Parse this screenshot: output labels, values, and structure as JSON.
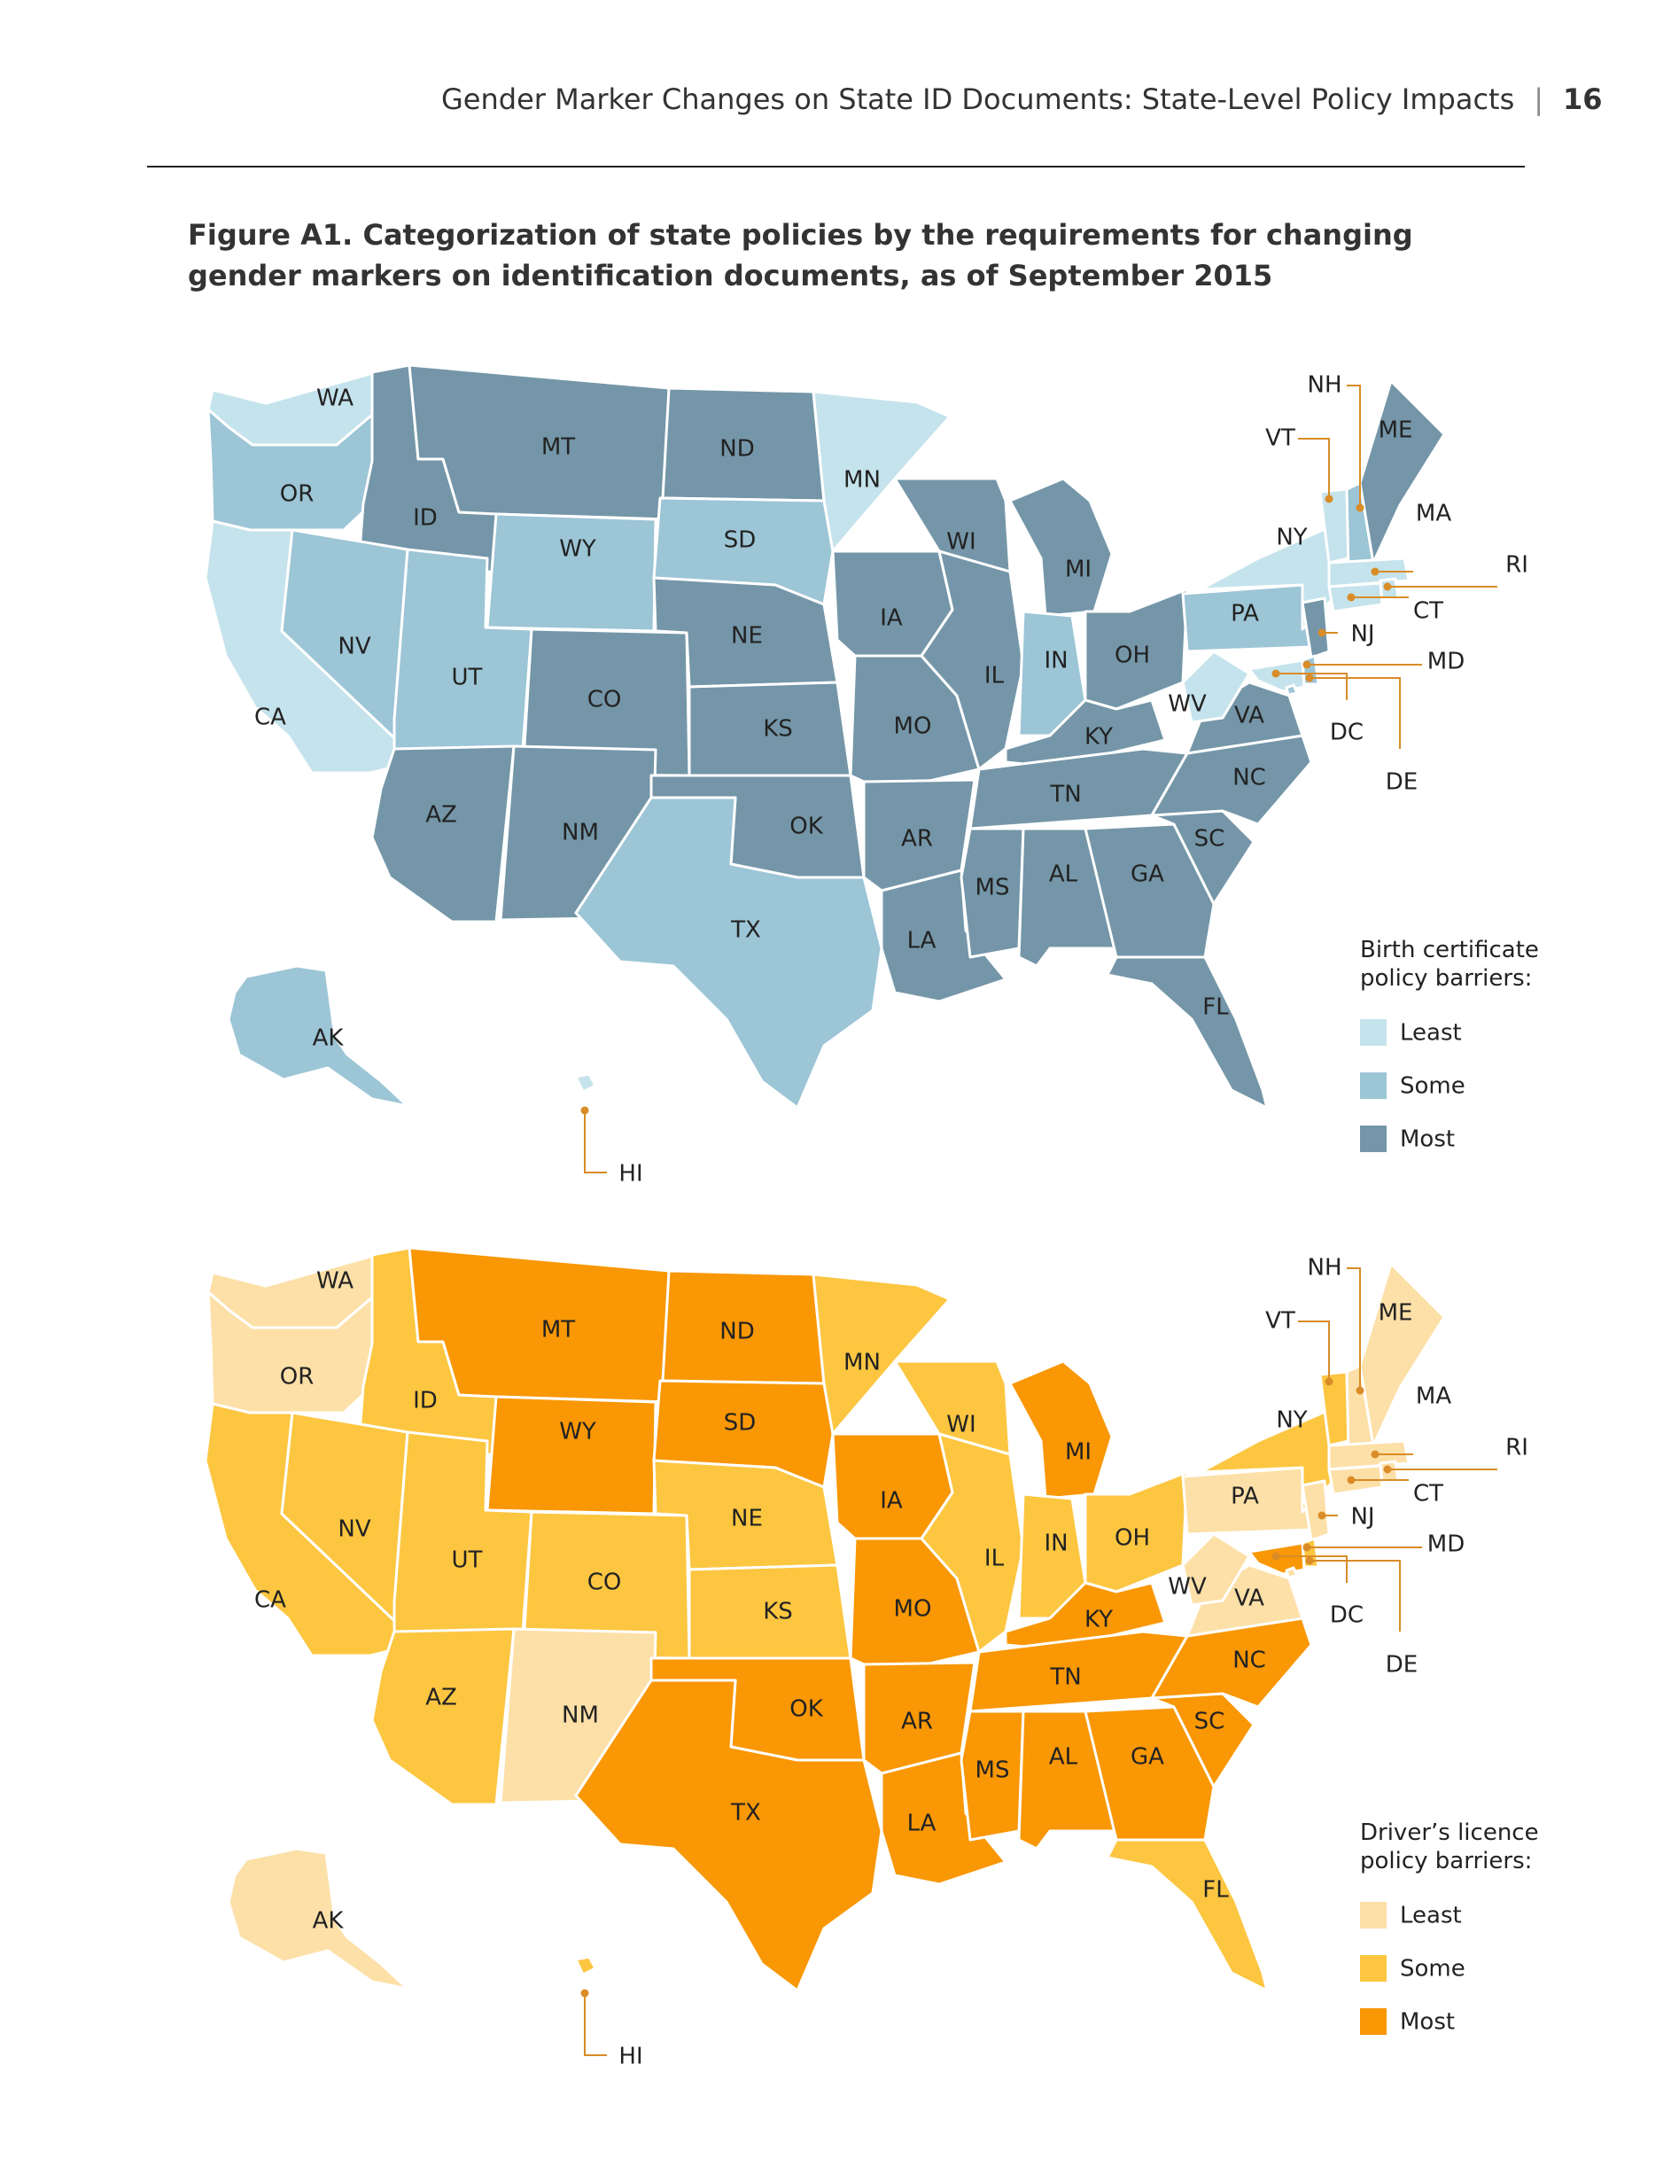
{
  "header": {
    "title": "Gender Marker Changes on State ID Documents: State-Level Policy Impacts",
    "separator": "|",
    "page_number": "16"
  },
  "figure": {
    "title": "Figure A1. Categorization of state policies by the requirements for changing gender markers on identification documents, as of September 2015"
  },
  "maps": [
    {
      "id": "birth",
      "legend_title_lines": [
        "Birth certificate",
        "policy barriers:"
      ],
      "categories": [
        "Least",
        "Some",
        "Most"
      ],
      "colors": {
        "Least": "#c5e3ec",
        "Some": "#9cc5d6",
        "Most": "#7496a8"
      },
      "states": {
        "WA": "Least",
        "OR": "Some",
        "CA": "Least",
        "ID": "Most",
        "NV": "Some",
        "MT": "Most",
        "WY": "Some",
        "UT": "Some",
        "AZ": "Most",
        "CO": "Most",
        "NM": "Most",
        "ND": "Most",
        "SD": "Some",
        "NE": "Most",
        "KS": "Most",
        "OK": "Most",
        "TX": "Some",
        "MN": "Least",
        "IA": "Most",
        "MO": "Most",
        "AR": "Most",
        "LA": "Most",
        "WI": "Most",
        "IL": "Most",
        "MI": "Most",
        "IN": "Some",
        "OH": "Most",
        "KY": "Most",
        "TN": "Most",
        "MS": "Most",
        "AL": "Most",
        "GA": "Most",
        "FL": "Most",
        "SC": "Most",
        "NC": "Most",
        "VA": "Most",
        "WV": "Least",
        "PA": "Some",
        "NY": "Least",
        "ME": "Most",
        "VT": "Least",
        "NH": "Some",
        "MA": "Least",
        "RI": "Least",
        "CT": "Least",
        "NJ": "Most",
        "DE": "Some",
        "MD": "Least",
        "DC": "Some",
        "AK": "Some",
        "HI": "Least"
      }
    },
    {
      "id": "license",
      "legend_title_lines": [
        "Driver’s licence",
        "policy barriers:"
      ],
      "categories": [
        "Least",
        "Some",
        "Most"
      ],
      "colors": {
        "Least": "#fde0a8",
        "Some": "#fcc641",
        "Most": "#f99704"
      },
      "states": {
        "WA": "Least",
        "OR": "Least",
        "CA": "Some",
        "ID": "Some",
        "NV": "Some",
        "MT": "Most",
        "WY": "Most",
        "UT": "Some",
        "AZ": "Some",
        "CO": "Some",
        "NM": "Least",
        "ND": "Most",
        "SD": "Most",
        "NE": "Some",
        "KS": "Some",
        "OK": "Most",
        "TX": "Most",
        "MN": "Some",
        "IA": "Most",
        "MO": "Most",
        "AR": "Most",
        "LA": "Most",
        "WI": "Some",
        "IL": "Some",
        "MI": "Most",
        "IN": "Some",
        "OH": "Some",
        "KY": "Most",
        "TN": "Most",
        "MS": "Most",
        "AL": "Most",
        "GA": "Most",
        "FL": "Some",
        "SC": "Most",
        "NC": "Most",
        "VA": "Least",
        "WV": "Least",
        "PA": "Least",
        "NY": "Some",
        "ME": "Least",
        "VT": "Some",
        "NH": "Least",
        "MA": "Least",
        "RI": "Least",
        "CT": "Least",
        "NJ": "Least",
        "DE": "Some",
        "MD": "Most",
        "DC": "Least",
        "AK": "Least",
        "HI": "Some"
      }
    }
  ]
}
